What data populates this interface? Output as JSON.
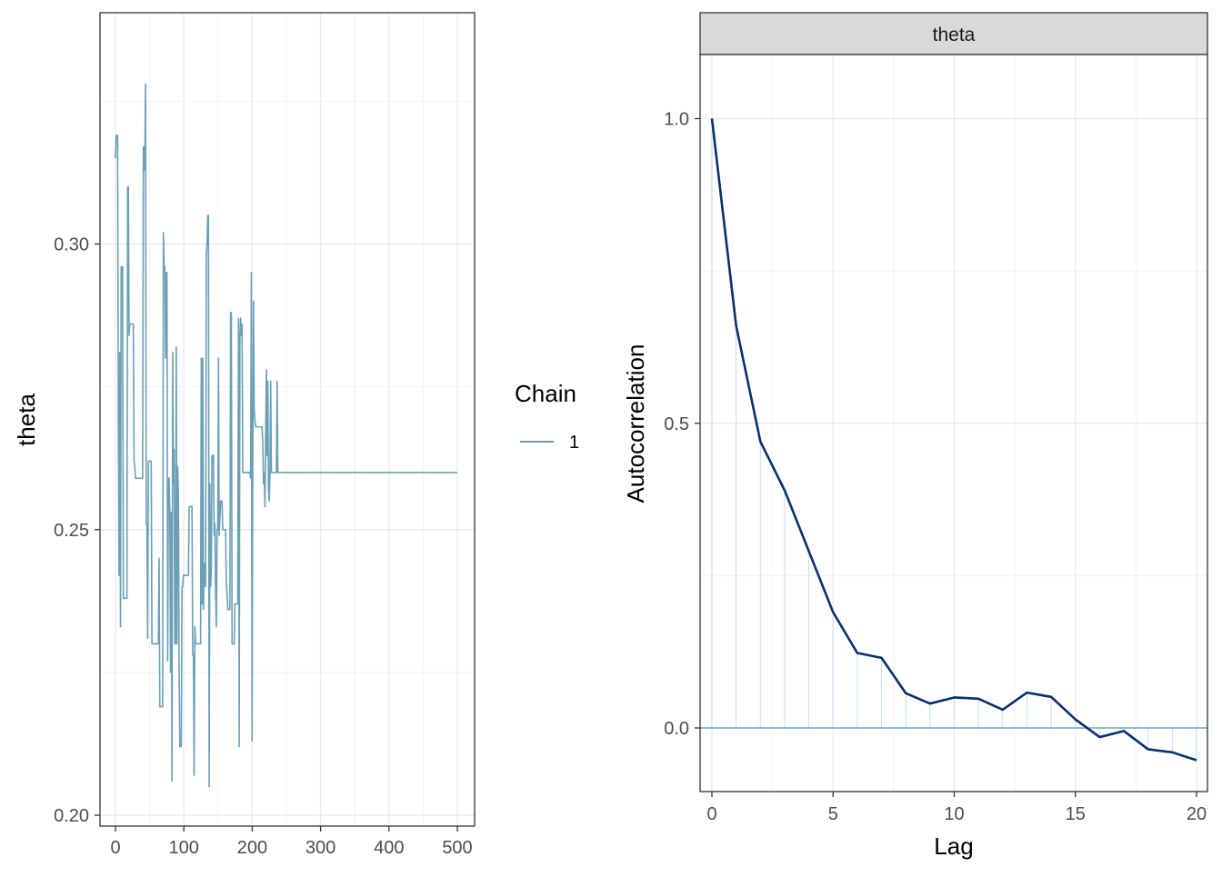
{
  "chart_data": [
    {
      "type": "line",
      "title": "",
      "xlabel": "",
      "ylabel": "theta",
      "xlim": [
        0,
        500
      ],
      "ylim": [
        0.2,
        0.34
      ],
      "x_ticks": [
        0,
        100,
        200,
        300,
        400,
        500
      ],
      "x_tick_labels": [
        "0",
        "100",
        "200",
        "300",
        "400",
        "500"
      ],
      "y_ticks": [
        0.2,
        0.25,
        0.3
      ],
      "y_tick_labels": [
        "0.20",
        "0.25",
        "0.30"
      ],
      "grid": true,
      "series": [
        {
          "name": "1",
          "color": "#6a9fb5",
          "values": [
            0.315,
            0.319,
            0.319,
            0.319,
            0.269,
            0.242,
            0.281,
            0.233,
            0.296,
            0.296,
            0.296,
            0.238,
            0.238,
            0.238,
            0.238,
            0.238,
            0.238,
            0.31,
            0.31,
            0.284,
            0.286,
            0.286,
            0.286,
            0.286,
            0.286,
            0.286,
            0.262,
            0.261,
            0.259,
            0.259,
            0.259,
            0.259,
            0.259,
            0.259,
            0.259,
            0.259,
            0.259,
            0.259,
            0.259,
            0.317,
            0.317,
            0.313,
            0.328,
            0.251,
            0.251,
            0.231,
            0.262,
            0.262,
            0.262,
            0.262,
            0.262,
            0.23,
            0.23,
            0.23,
            0.23,
            0.23,
            0.23,
            0.23,
            0.23,
            0.23,
            0.23,
            0.245,
            0.219,
            0.219,
            0.219,
            0.219,
            0.219,
            0.302,
            0.296,
            0.296,
            0.28,
            0.295,
            0.295,
            0.227,
            0.259,
            0.259,
            0.253,
            0.225,
            0.253,
            0.206,
            0.281,
            0.258,
            0.264,
            0.23,
            0.23,
            0.282,
            0.23,
            0.261,
            0.256,
            0.225,
            0.212,
            0.212,
            0.212,
            0.24,
            0.24,
            0.242,
            0.242,
            0.242,
            0.242,
            0.242,
            0.242,
            0.242,
            0.242,
            0.254,
            0.254,
            0.254,
            0.254,
            0.254,
            0.228,
            0.228,
            0.207,
            0.233,
            0.23,
            0.23,
            0.23,
            0.23,
            0.23,
            0.23,
            0.23,
            0.23,
            0.28,
            0.237,
            0.28,
            0.236,
            0.244,
            0.243,
            0.24,
            0.298,
            0.3,
            0.305,
            0.305,
            0.205,
            0.258,
            0.24,
            0.243,
            0.263,
            0.263,
            0.263,
            0.249,
            0.251,
            0.239,
            0.233,
            0.25,
            0.25,
            0.28,
            0.249,
            0.252,
            0.255,
            0.255,
            0.255,
            0.25,
            0.25,
            0.25,
            0.25,
            0.25,
            0.24,
            0.239,
            0.236,
            0.236,
            0.236,
            0.236,
            0.288,
            0.288,
            0.23,
            0.23,
            0.23,
            0.23,
            0.237,
            0.237,
            0.237,
            0.237,
            0.237,
            0.287,
            0.212,
            0.284,
            0.287,
            0.284,
            0.286,
            0.26,
            0.26,
            0.26,
            0.26,
            0.26,
            0.26,
            0.26,
            0.26,
            0.26,
            0.26,
            0.26,
            0.259,
            0.295,
            0.213,
            0.263,
            0.29,
            0.271,
            0.269,
            0.268,
            0.268,
            0.268,
            0.268,
            0.268,
            0.268,
            0.268,
            0.268,
            0.268,
            0.268,
            0.265,
            0.258,
            0.26,
            0.254,
            0.266,
            0.278,
            0.263,
            0.276,
            0.257,
            0.255,
            0.26,
            0.276,
            0.26,
            0.26,
            0.26,
            0.26,
            0.26,
            0.26,
            0.26,
            0.26,
            0.276,
            0.26,
            0.26,
            0.26,
            0.26,
            0.26,
            0.26,
            0.26,
            0.26,
            0.26,
            0.26,
            0.26,
            0.26,
            0.26,
            0.26,
            0.26,
            0.26,
            0.26,
            0.26,
            0.26,
            0.26,
            0.26,
            0.26,
            0.26,
            0.26,
            0.26,
            0.26,
            0.26,
            0.26,
            0.26,
            0.26,
            0.26,
            0.26,
            0.26,
            0.26,
            0.26,
            0.26,
            0.26,
            0.26,
            0.26,
            0.26,
            0.26,
            0.26,
            0.26,
            0.26,
            0.26,
            0.26,
            0.26,
            0.26,
            0.26,
            0.26,
            0.26,
            0.26,
            0.26,
            0.26,
            0.26,
            0.26,
            0.26,
            0.26,
            0.26,
            0.26,
            0.26,
            0.26,
            0.26,
            0.26,
            0.26,
            0.26,
            0.26,
            0.26,
            0.26,
            0.26,
            0.26,
            0.26,
            0.26,
            0.26,
            0.26,
            0.26,
            0.26,
            0.26,
            0.26,
            0.26,
            0.26,
            0.26,
            0.26,
            0.26,
            0.26,
            0.26,
            0.26,
            0.26,
            0.26,
            0.26,
            0.26,
            0.26,
            0.26,
            0.26,
            0.26,
            0.26,
            0.26,
            0.26,
            0.26,
            0.26,
            0.26,
            0.26,
            0.26,
            0.26,
            0.26,
            0.26,
            0.26,
            0.26,
            0.26,
            0.26,
            0.26,
            0.26,
            0.26,
            0.26,
            0.26,
            0.26,
            0.26,
            0.26,
            0.26,
            0.26,
            0.26,
            0.26,
            0.26,
            0.26,
            0.26,
            0.26,
            0.26,
            0.26,
            0.26,
            0.26,
            0.26,
            0.26,
            0.26,
            0.26,
            0.26,
            0.26,
            0.26,
            0.26,
            0.26,
            0.26,
            0.26,
            0.26,
            0.26,
            0.26,
            0.26,
            0.26,
            0.26,
            0.26,
            0.26,
            0.26,
            0.26,
            0.26,
            0.26,
            0.26,
            0.26,
            0.26,
            0.26,
            0.26,
            0.26,
            0.26,
            0.26,
            0.26,
            0.26,
            0.26,
            0.26,
            0.26,
            0.26,
            0.26,
            0.26,
            0.26,
            0.26,
            0.26,
            0.26,
            0.26,
            0.26,
            0.26,
            0.26,
            0.26,
            0.26,
            0.26,
            0.26,
            0.26,
            0.26,
            0.26,
            0.26,
            0.26,
            0.26,
            0.26,
            0.26,
            0.26,
            0.26,
            0.26,
            0.26,
            0.26,
            0.26,
            0.26,
            0.26,
            0.26,
            0.26,
            0.26,
            0.26,
            0.26,
            0.26,
            0.26,
            0.26,
            0.26,
            0.26,
            0.26,
            0.26,
            0.26,
            0.26,
            0.26,
            0.26,
            0.26,
            0.26,
            0.26,
            0.26,
            0.26,
            0.26,
            0.26,
            0.26,
            0.26,
            0.26,
            0.26,
            0.26,
            0.26,
            0.26,
            0.26,
            0.26,
            0.26,
            0.26,
            0.26,
            0.26,
            0.26,
            0.26,
            0.26,
            0.26,
            0.26,
            0.26,
            0.26,
            0.26,
            0.26,
            0.26,
            0.26,
            0.26,
            0.26,
            0.26,
            0.26,
            0.26,
            0.26,
            0.26,
            0.26
          ]
        }
      ]
    },
    {
      "type": "line",
      "title": "",
      "facet_label": "theta",
      "xlabel": "Lag",
      "ylabel": "Autocorrelation",
      "xlim": [
        -0.5,
        20.5
      ],
      "ylim": [
        -0.1,
        1.1
      ],
      "x_ticks": [
        0,
        5,
        10,
        15,
        20
      ],
      "x_tick_labels": [
        "0",
        "5",
        "10",
        "15",
        "20"
      ],
      "y_ticks": [
        0.0,
        0.5,
        1.0
      ],
      "y_tick_labels": [
        "0.0",
        "0.5",
        "1.0"
      ],
      "grid": true,
      "zero_line": true,
      "x": [
        0,
        1,
        2,
        3,
        4,
        5,
        6,
        7,
        8,
        9,
        10,
        11,
        12,
        13,
        14,
        15,
        16,
        17,
        18,
        19,
        20
      ],
      "series": [
        {
          "color": "#08306b",
          "values": [
            1.0,
            0.66,
            0.47,
            0.39,
            0.29,
            0.19,
            0.123,
            0.115,
            0.057,
            0.04,
            0.05,
            0.048,
            0.03,
            0.058,
            0.051,
            0.014,
            -0.015,
            -0.005,
            -0.035,
            -0.04,
            -0.053
          ]
        }
      ]
    }
  ],
  "legend": {
    "title": "Chain",
    "entries": [
      {
        "label": "1",
        "color": "#6a9fb5"
      }
    ]
  }
}
